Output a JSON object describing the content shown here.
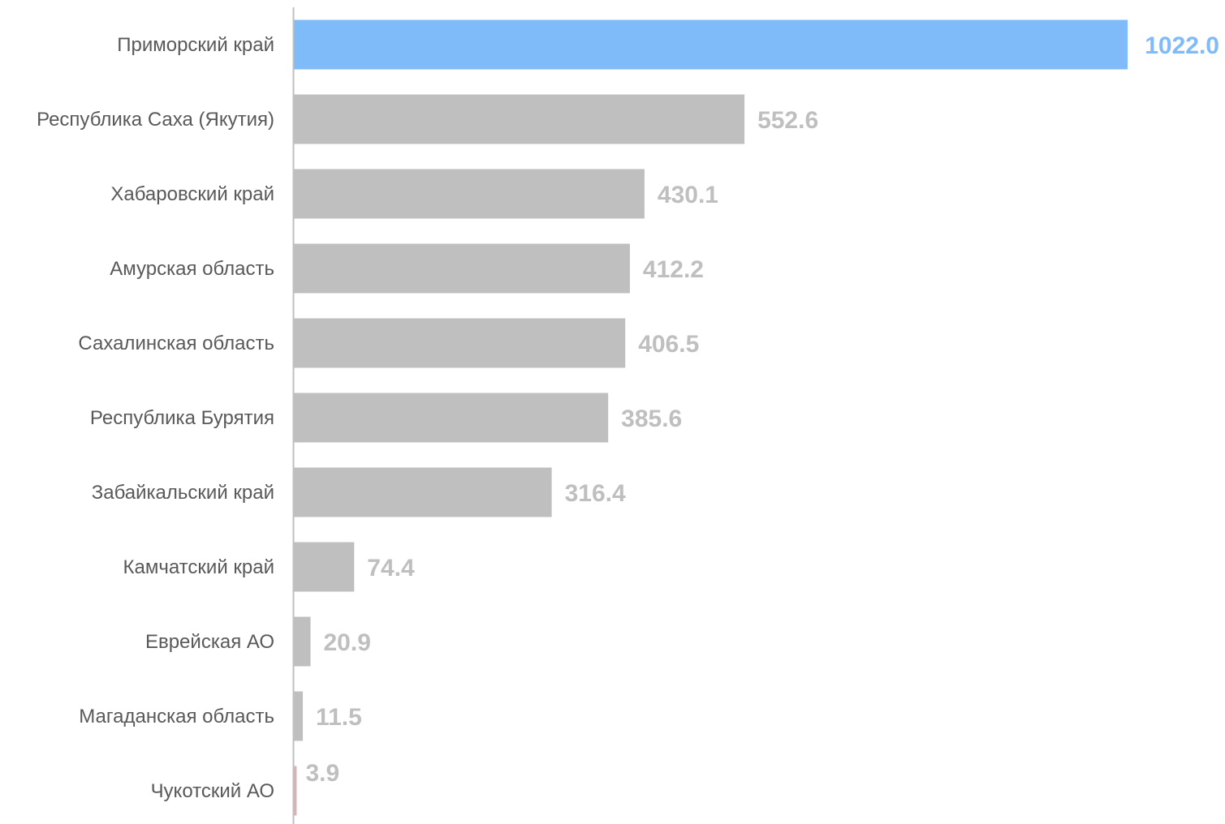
{
  "chart_data": {
    "type": "bar",
    "orientation": "horizontal",
    "title": "",
    "xlabel": "",
    "ylabel": "",
    "categories": [
      "Приморский край",
      "Республика Саха (Якутия)",
      "Хабаровский край",
      "Амурская область",
      "Сахалинская область",
      "Республика Бурятия",
      "Забайкальский край",
      "Камчатский край",
      "Еврейская АО",
      "Магаданская область",
      "Чукотский АО"
    ],
    "values": [
      1022.0,
      552.6,
      430.1,
      412.2,
      406.5,
      385.6,
      316.4,
      74.4,
      20.9,
      11.5,
      3.9
    ],
    "value_labels": [
      "1022.0",
      "552.6",
      "430.1",
      "412.2",
      "406.5",
      "385.6",
      "316.4",
      "74.4",
      "20.9",
      "11.5",
      "3.9"
    ],
    "bar_colors": [
      "#7FBAF9",
      "#BFBFBF",
      "#BFBFBF",
      "#BFBFBF",
      "#BFBFBF",
      "#BFBFBF",
      "#BFBFBF",
      "#BFBFBF",
      "#BFBFBF",
      "#BFBFBF",
      "#D9B3B3"
    ],
    "label_colors": [
      "#7FBAF9",
      "#BFBFBF",
      "#BFBFBF",
      "#BFBFBF",
      "#BFBFBF",
      "#BFBFBF",
      "#BFBFBF",
      "#BFBFBF",
      "#BFBFBF",
      "#BFBFBF",
      "#BFBFBF"
    ],
    "axis_color": "#BFBFBF",
    "xlim": [
      0,
      1022
    ],
    "grid": false,
    "legend": "none"
  }
}
